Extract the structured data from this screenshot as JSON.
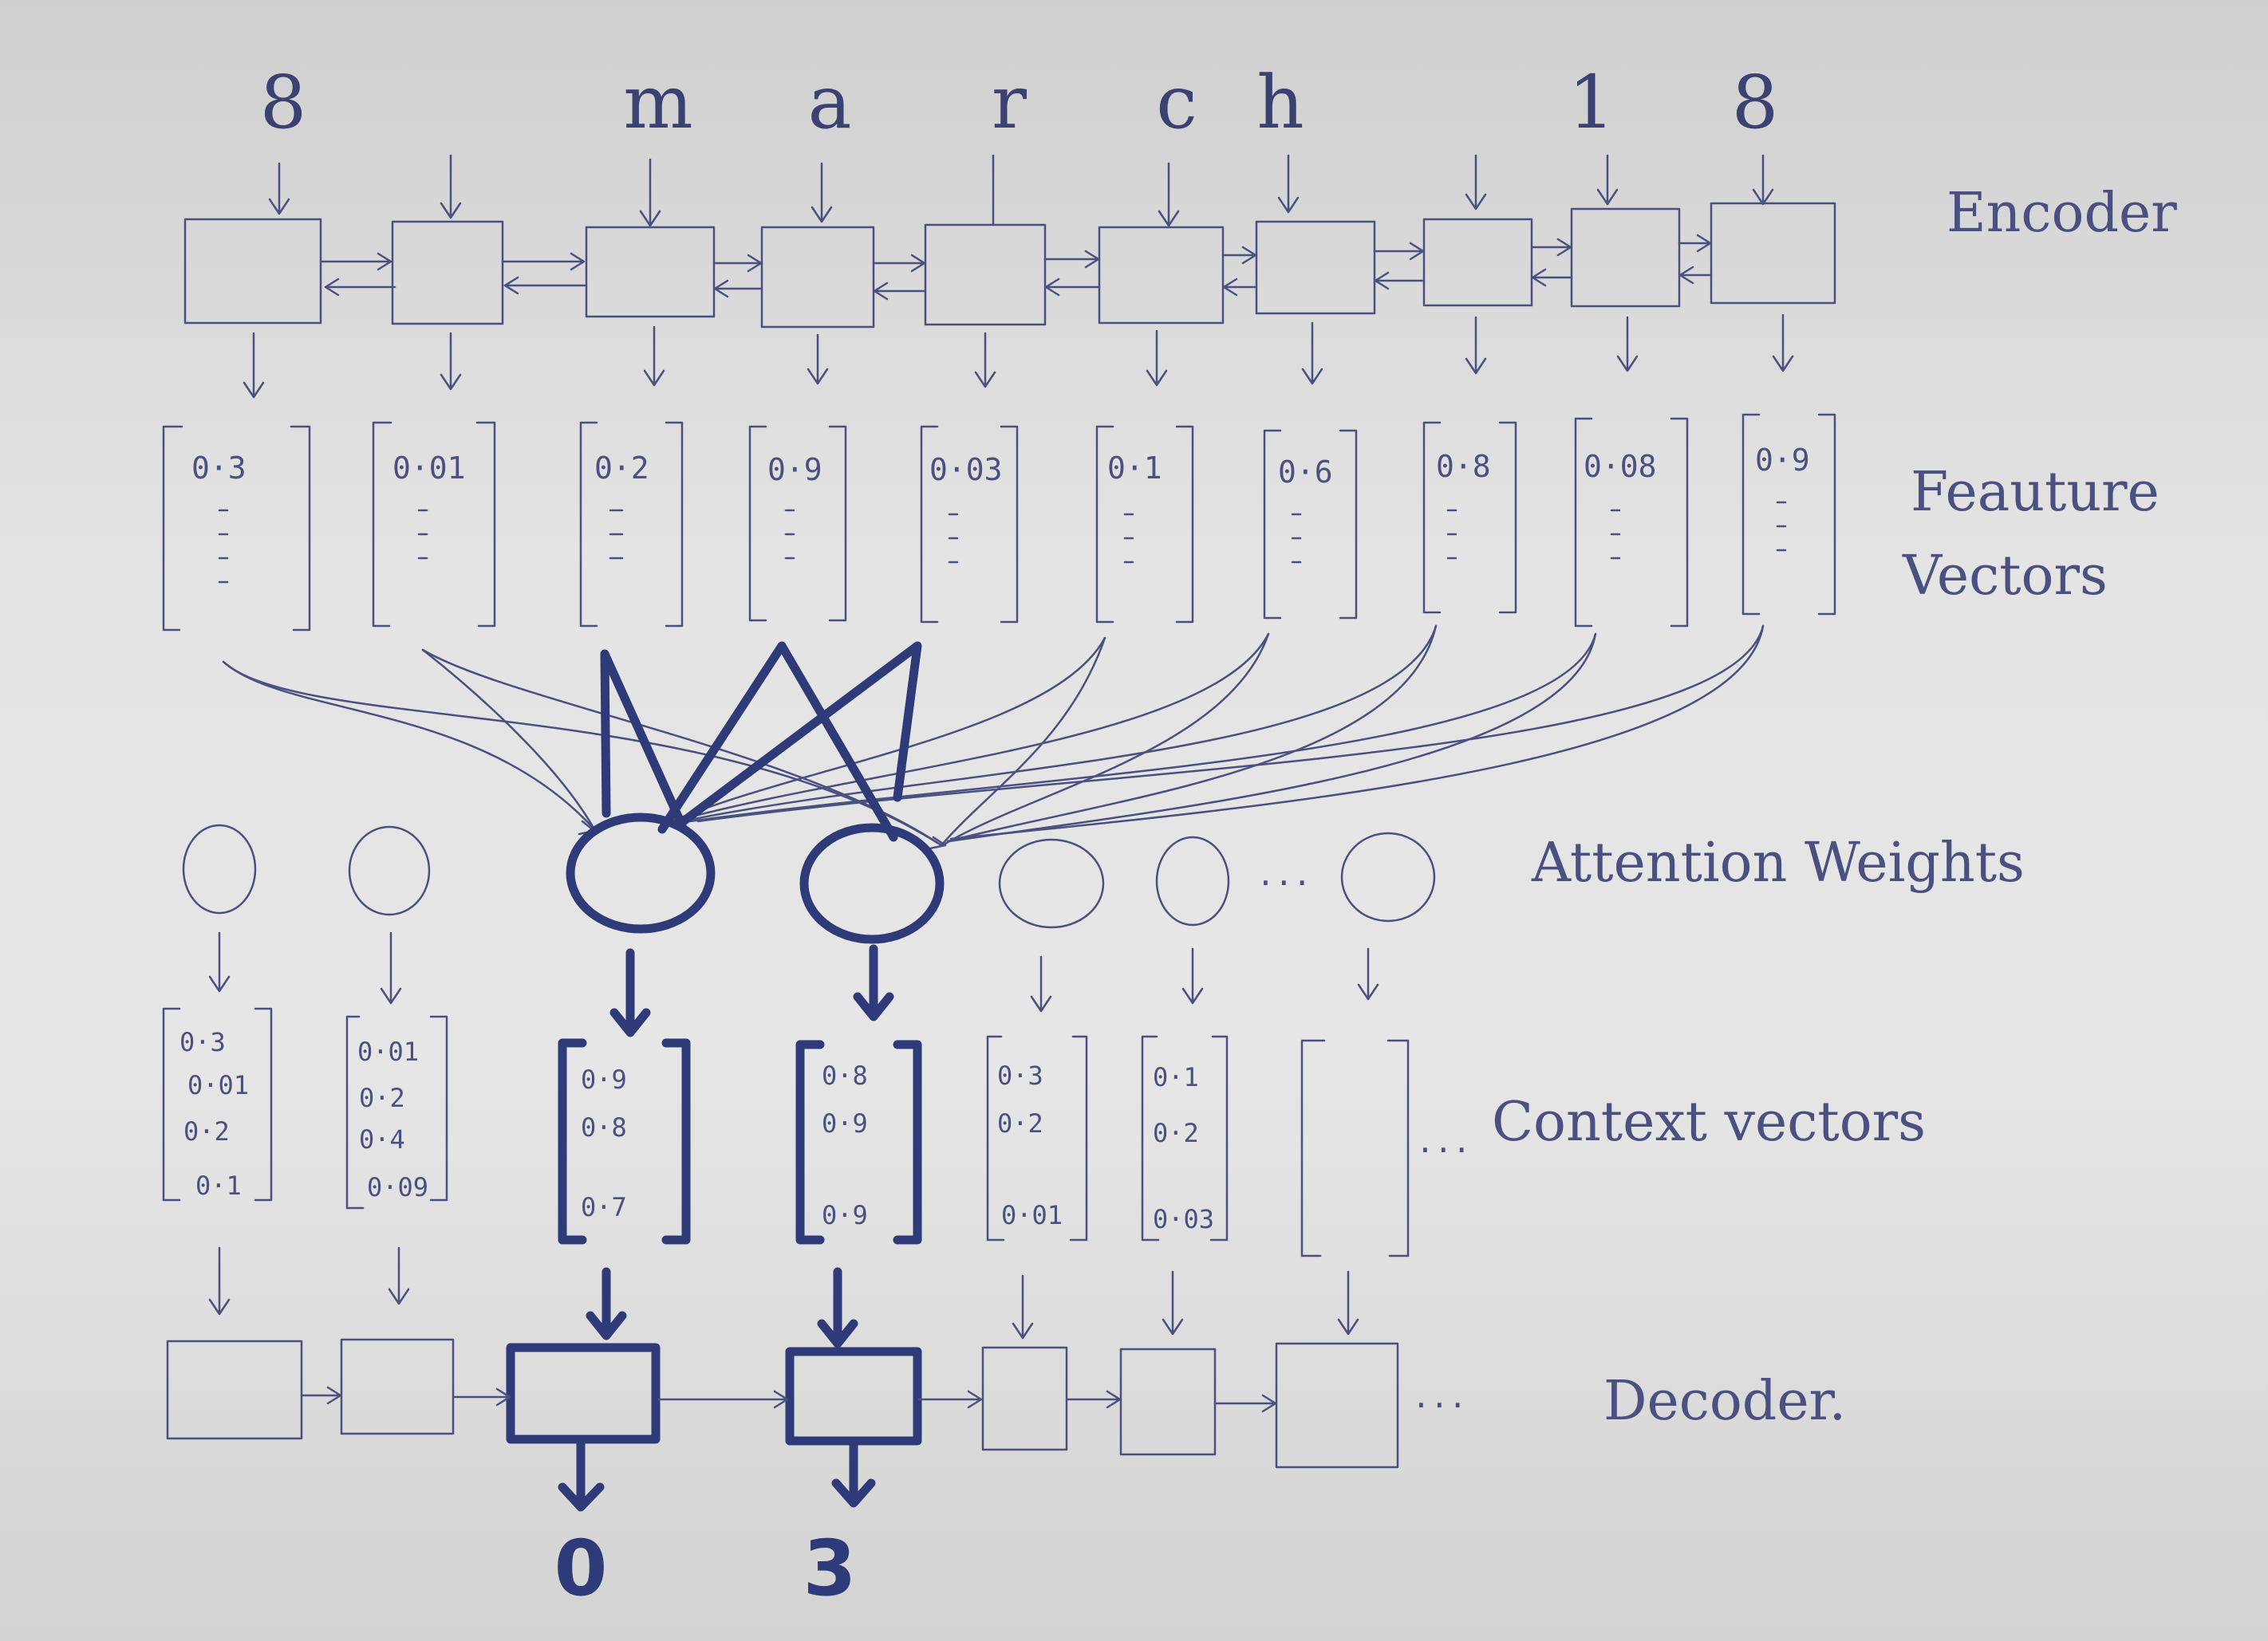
{
  "input_chars": [
    "8",
    "m",
    "a",
    "r",
    "c",
    "h",
    "1",
    "8"
  ],
  "labels": {
    "encoder": "Encoder",
    "feature_vectors_line1": "Feauture",
    "feature_vectors_line2": "Vectors",
    "attention_weights": "Attention Weights",
    "context_vectors": "Context vectors",
    "decoder": "Decoder."
  },
  "feature_vectors": [
    "0·3",
    "0·01",
    "0·2",
    "0·9",
    "0·03",
    "0·1",
    "0·6",
    "0·8",
    "0·08",
    "0·9"
  ],
  "context_vectors": [
    [
      "0·3",
      "0·01",
      "0·2",
      "0·1"
    ],
    [
      "0·01",
      "0·2",
      "0·4",
      "0·09"
    ],
    [
      "0·9",
      "0·8",
      "0·7"
    ],
    [
      "0·8",
      "0·9",
      "0·9"
    ],
    [
      "0·3",
      "0·2",
      "0·01"
    ],
    [
      "0·1",
      "0·2",
      "0·03"
    ],
    []
  ],
  "decoder_outputs": [
    "0",
    "3"
  ],
  "ellipsis": "...",
  "colors": {
    "ink": "#4a5080",
    "bold_ink": "#2f3a78",
    "paper": "#e2e2e2"
  }
}
